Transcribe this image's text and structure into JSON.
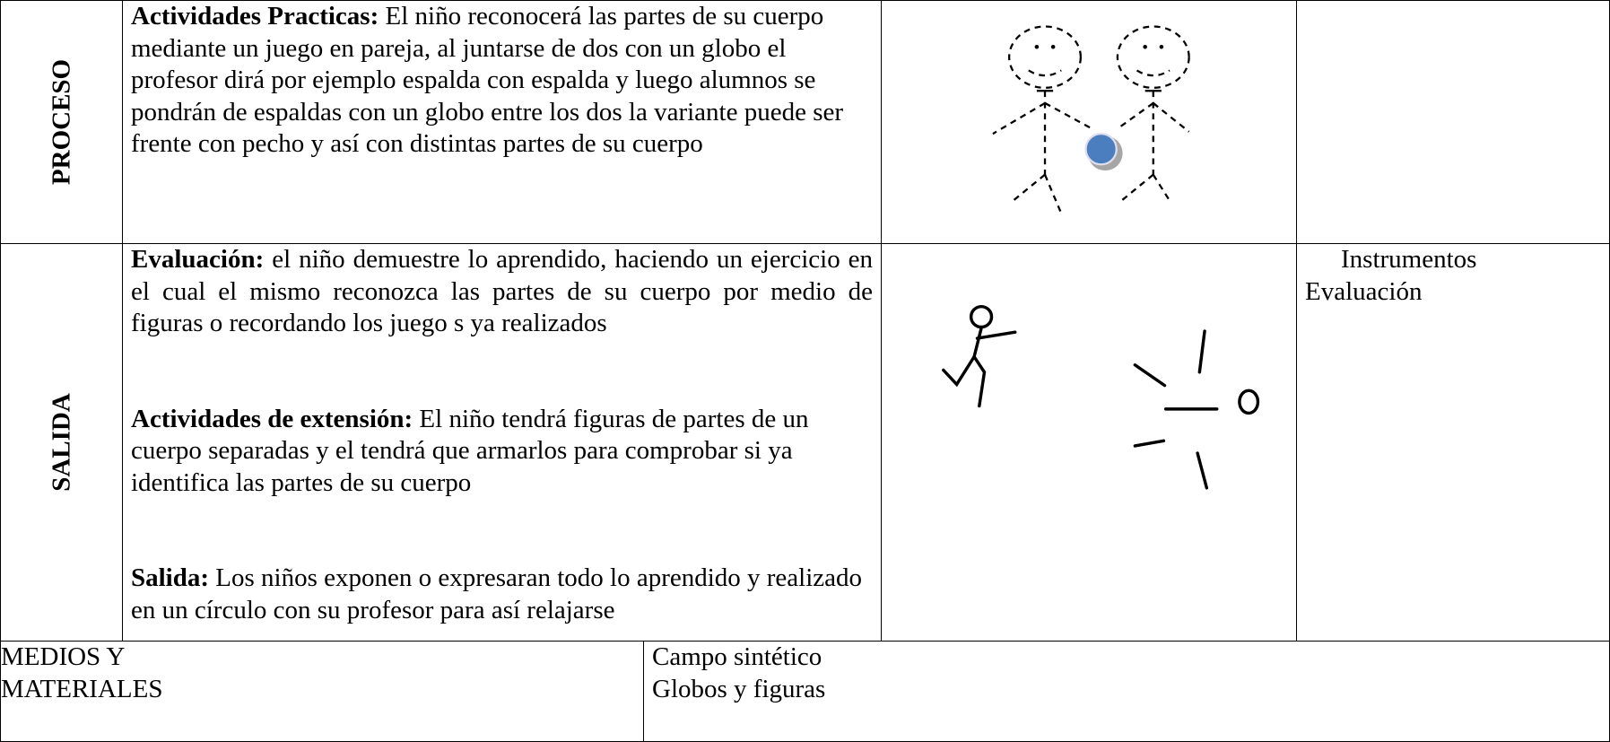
{
  "table": {
    "rows": [
      {
        "label": "PROCESO",
        "content": [
          {
            "heading": "Actividades Practicas:",
            "text": "El niño reconocerá las partes de su cuerpo mediante un juego en pareja, al juntarse de dos con un globo el profesor dirá por ejemplo espalda con espalda y luego alumnos se pondrán de espaldas con un globo entre los dos la variante puede ser frente con pecho y así con distintas partes de su cuerpo"
          }
        ]
      },
      {
        "label": "SALIDA",
        "content": [
          {
            "heading": "Evaluación:",
            "text": "el niño demuestre lo aprendido, haciendo un ejercicio en el cual el mismo reconozca las partes de su cuerpo por medio de figuras o recordando los juego s ya realizados"
          },
          {
            "heading": "Actividades de extensión:",
            "text": "El niño tendrá figuras de partes de un cuerpo separadas y el tendrá que armarlos para comprobar si ya identifica las partes de su cuerpo"
          },
          {
            "heading": "Salida:",
            "text": "Los niños exponen o expresaran todo lo aprendido y realizado en un círculo con su profesor para así relajarse"
          }
        ],
        "instruments": [
          "Instrumentos",
          "Evaluación"
        ]
      }
    ],
    "footer": {
      "label": [
        "MEDIOS Y",
        "MATERIALES"
      ],
      "content": [
        "Campo sintético",
        "Globos y figuras"
      ]
    }
  }
}
